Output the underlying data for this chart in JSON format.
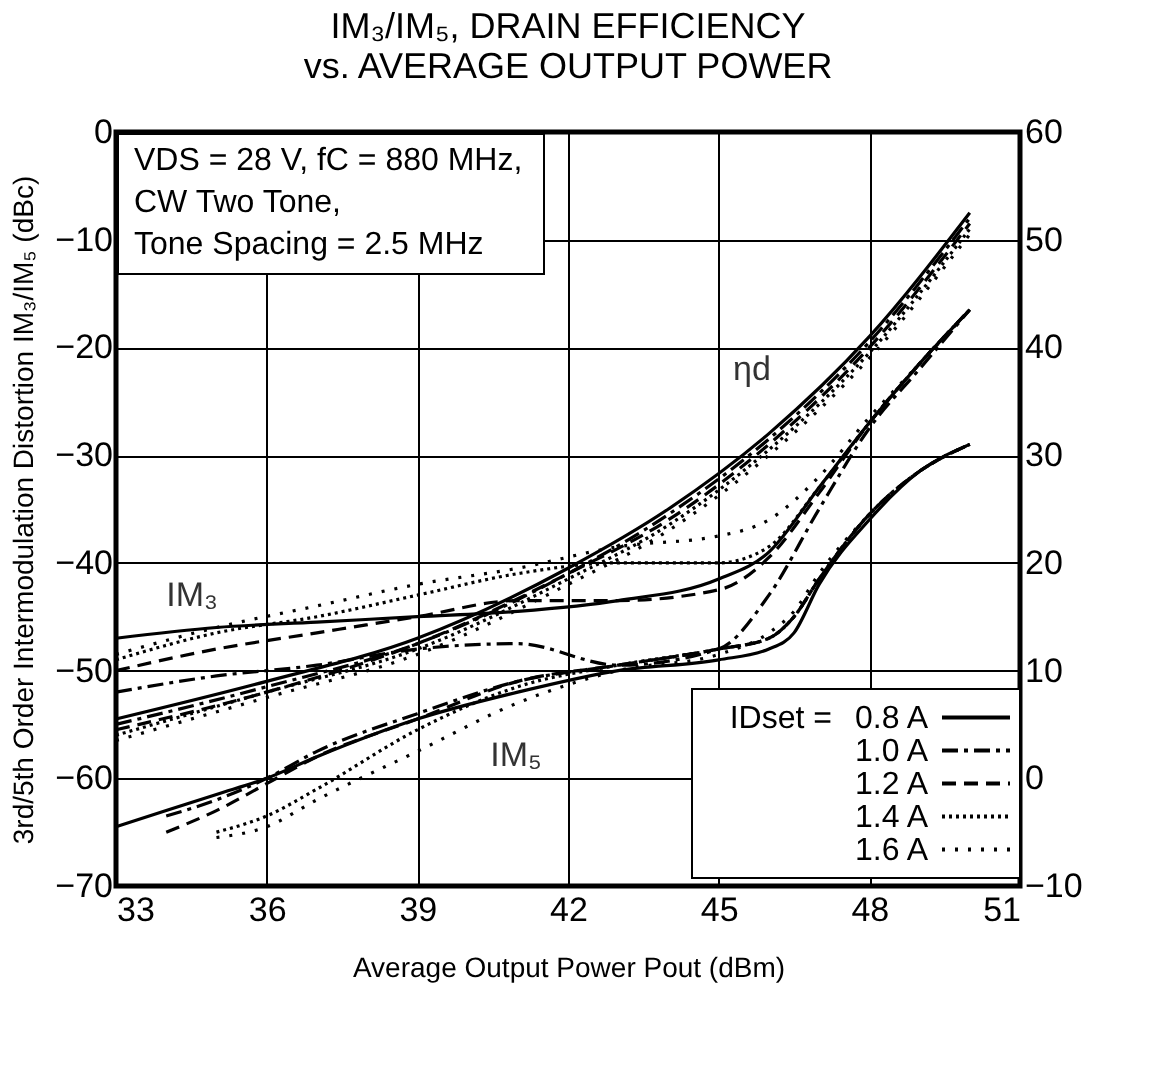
{
  "chart_data": {
    "type": "line",
    "title": [
      "IM₃/IM₅, DRAIN EFFICIENCY",
      "vs. AVERAGE OUTPUT POWER"
    ],
    "xlabel": "Average Output Power  Pout (dBm)",
    "ylabel": "3rd/5th Order Intermodulation Distortion  IM₃/IM₅ (dBc)",
    "legend_title": "IDset =",
    "legend": "bottom right",
    "grid": true,
    "xlim": [
      33,
      51
    ],
    "xticks": [
      33,
      36,
      39,
      42,
      45,
      48,
      51
    ],
    "ylim": [
      -70,
      0
    ],
    "yticks": [
      -70,
      -60,
      -50,
      -40,
      -30,
      -20,
      -10,
      0
    ],
    "y2lim": [
      -10,
      60
    ],
    "y2ticks": [
      -10,
      0,
      10,
      20,
      30,
      40,
      50,
      60
    ],
    "annotations": [
      "VDS = 28 V, fC = 880 MHz,\nCW Two Tone,\nTone Spacing = 2.5 MHz",
      "IM₃",
      "IM₅",
      "ηd"
    ],
    "series": [
      {
        "name": "0.8 A",
        "color": "#000000",
        "line_style": "solid",
        "x": [
          33,
          35,
          37,
          39,
          41,
          43,
          45,
          46,
          47,
          48,
          49,
          50
        ],
        "values": [
          -47,
          -46,
          -45.5,
          -45,
          -44.5,
          -43.5,
          -41.5,
          -39,
          -33,
          -27,
          -21.5,
          -16.5
        ]
      },
      {
        "name": "1.0 A",
        "color": "#000000",
        "line_style": "dash-dot",
        "x": [
          33,
          35,
          37,
          39,
          41,
          43,
          45,
          46,
          47,
          48,
          49,
          50
        ],
        "values": [
          -52,
          -50.5,
          -49.5,
          -48,
          -47.5,
          -49.5,
          -48,
          -43,
          -35,
          -27.5,
          -22,
          -16.5
        ]
      },
      {
        "name": "1.2 A",
        "color": "#000000",
        "line_style": "dashed",
        "x": [
          33,
          35,
          37,
          39,
          41,
          43,
          45,
          46,
          47,
          48,
          49,
          50
        ],
        "values": [
          -50,
          -48,
          -46.5,
          -45,
          -43.5,
          -43.5,
          -42.5,
          -39.5,
          -33.5,
          -27,
          -21.5,
          -16.5
        ]
      },
      {
        "name": "1.4 A",
        "color": "#000000",
        "line_style": "dotted",
        "x": [
          33,
          35,
          37,
          39,
          41,
          43,
          45,
          46,
          47,
          48,
          49,
          50
        ],
        "values": [
          -49,
          -46.5,
          -45,
          -43,
          -41,
          -40,
          -40,
          -38.5,
          -33,
          -27,
          -21.5,
          -16.5
        ]
      },
      {
        "name": "1.6 A",
        "color": "#000000",
        "line_style": "sparse dotted",
        "x": [
          33,
          35,
          37,
          39,
          41,
          43,
          45,
          46,
          47,
          48,
          49,
          50
        ],
        "values": [
          -48.5,
          -46,
          -44,
          -42,
          -40.5,
          -38.5,
          -37.5,
          -36,
          -32,
          -26.5,
          -21.5,
          -16.5
        ]
      },
      {
        "color": "#000000",
        "line_style": "solid",
        "x": [
          33,
          35,
          36,
          37,
          39,
          41,
          43,
          45,
          46,
          46.5,
          47,
          48,
          49,
          50
        ],
        "values": [
          -64.5,
          -61.5,
          -60,
          -58,
          -54.5,
          -52,
          -50,
          -49,
          -48,
          -46.5,
          -42,
          -36,
          -31.5,
          -29
        ]
      },
      {
        "color": "#000000",
        "line_style": "dash-dot",
        "x": [
          34,
          35,
          36,
          37,
          39,
          41,
          43,
          45,
          46,
          46.5,
          47,
          48,
          49,
          50
        ],
        "values": [
          -63.5,
          -62,
          -60,
          -57.5,
          -54,
          -51,
          -49.5,
          -48,
          -47,
          -45,
          -41.5,
          -35.5,
          -31.5,
          -29
        ]
      },
      {
        "color": "#000000",
        "line_style": "dashed",
        "x": [
          34,
          35,
          36,
          37,
          39,
          41,
          43,
          45,
          46,
          46.5,
          47,
          48,
          49,
          50
        ],
        "values": [
          -65,
          -63,
          -60.5,
          -58,
          -54.5,
          -51,
          -49.5,
          -48,
          -47,
          -45,
          -41.5,
          -35.5,
          -31.5,
          -29
        ]
      },
      {
        "color": "#000000",
        "line_style": "dotted",
        "x": [
          35,
          36,
          37,
          39,
          41,
          43,
          45,
          46,
          46.5,
          47,
          48,
          49,
          50
        ],
        "values": [
          -65,
          -63.5,
          -61,
          -55.5,
          -51.5,
          -49.5,
          -48,
          -47,
          -45,
          -41.5,
          -35.5,
          -31.5,
          -29
        ]
      },
      {
        "color": "#000000",
        "line_style": "sparse dotted",
        "x": [
          35,
          36,
          37,
          39,
          41,
          43,
          45,
          46,
          46.5,
          47,
          48,
          49,
          50
        ],
        "values": [
          -65.5,
          -64.5,
          -62,
          -57.5,
          -53,
          -50,
          -48.5,
          -46.5,
          -44.5,
          -41,
          -35.5,
          -31.5,
          -29
        ]
      },
      {
        "color": "#000000",
        "line_style": "solid",
        "axis": "y2",
        "x": [
          33,
          36,
          39,
          42,
          44,
          46,
          48,
          50
        ],
        "values": [
          5.5,
          9,
          13,
          19.5,
          25,
          32,
          41,
          52.5
        ]
      },
      {
        "color": "#000000",
        "line_style": "dash-dot",
        "axis": "y2",
        "x": [
          33,
          36,
          39,
          42,
          44,
          46,
          48,
          50
        ],
        "values": [
          5,
          8.5,
          12.5,
          19,
          24.5,
          31.5,
          40.5,
          52
        ]
      },
      {
        "color": "#000000",
        "line_style": "dashed",
        "axis": "y2",
        "x": [
          33,
          36,
          39,
          42,
          44,
          46,
          48,
          50
        ],
        "values": [
          4.5,
          8,
          12.5,
          19,
          24,
          31,
          40,
          51.5
        ]
      },
      {
        "color": "#000000",
        "line_style": "dotted",
        "axis": "y2",
        "x": [
          33,
          36,
          39,
          42,
          44,
          46,
          48,
          50
        ],
        "values": [
          4,
          8,
          12,
          18.5,
          23.5,
          30.5,
          39.5,
          51
        ]
      },
      {
        "color": "#000000",
        "line_style": "sparse dotted",
        "axis": "y2",
        "x": [
          33,
          36,
          39,
          42,
          44,
          46,
          48,
          50
        ],
        "values": [
          3.5,
          7.5,
          11.5,
          18,
          23,
          30,
          39,
          50.5
        ]
      }
    ]
  }
}
